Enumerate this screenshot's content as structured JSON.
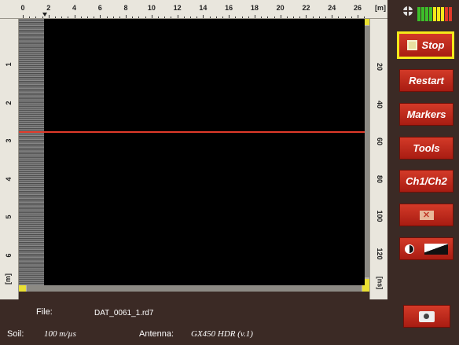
{
  "top_ruler": {
    "labels": [
      "0",
      "2",
      "4",
      "6",
      "8",
      "10",
      "12",
      "14",
      "16",
      "18",
      "20",
      "22",
      "24",
      "26"
    ],
    "unit": "[m]"
  },
  "left_ruler": {
    "labels": [
      "1",
      "2",
      "3",
      "4",
      "5",
      "6"
    ],
    "unit": "[m]"
  },
  "right_ruler": {
    "labels": [
      "20",
      "40",
      "60",
      "80",
      "100",
      "120"
    ],
    "unit": "[ns]"
  },
  "buttons": {
    "stop": "Stop",
    "restart": "Restart",
    "markers": "Markers",
    "tools": "Tools",
    "ch": "Ch1/Ch2"
  },
  "signal_colors": [
    "#3dbf2a",
    "#3dbf2a",
    "#3dbf2a",
    "#3dbf2a",
    "#f5e81a",
    "#f5e81a",
    "#f5e81a",
    "#e03a2a",
    "#e03a2a"
  ],
  "footer": {
    "file_label": "File:",
    "file_name": "DAT_0061_1.rd7",
    "soil_label": "Soil:",
    "soil_value": "100 m/µs",
    "antenna_label": "Antenna:",
    "antenna_value": "GX450 HDR (v.1)"
  }
}
